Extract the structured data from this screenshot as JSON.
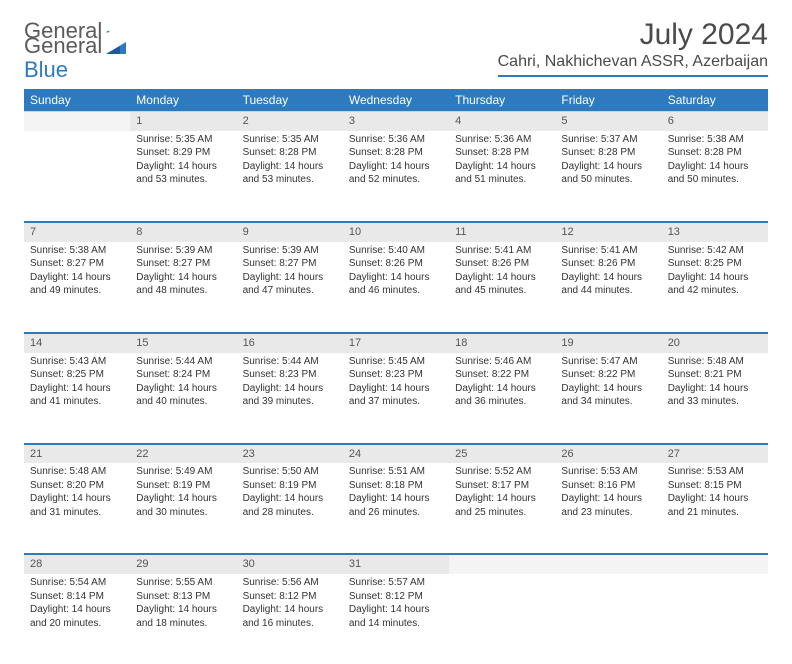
{
  "logo": {
    "general": "General",
    "blue": "Blue"
  },
  "header": {
    "month_title": "July 2024",
    "location": "Cahri, Nakhichevan ASSR, Azerbaijan"
  },
  "colors": {
    "primary": "#2e7abf",
    "header_bg": "#2e7abf",
    "daynum_bg": "#e9e9e9",
    "text": "#333333"
  },
  "weekdays": [
    "Sunday",
    "Monday",
    "Tuesday",
    "Wednesday",
    "Thursday",
    "Friday",
    "Saturday"
  ],
  "weeks": [
    [
      null,
      {
        "n": "1",
        "sr": "Sunrise: 5:35 AM",
        "ss": "Sunset: 8:29 PM",
        "dl": "Daylight: 14 hours and 53 minutes."
      },
      {
        "n": "2",
        "sr": "Sunrise: 5:35 AM",
        "ss": "Sunset: 8:28 PM",
        "dl": "Daylight: 14 hours and 53 minutes."
      },
      {
        "n": "3",
        "sr": "Sunrise: 5:36 AM",
        "ss": "Sunset: 8:28 PM",
        "dl": "Daylight: 14 hours and 52 minutes."
      },
      {
        "n": "4",
        "sr": "Sunrise: 5:36 AM",
        "ss": "Sunset: 8:28 PM",
        "dl": "Daylight: 14 hours and 51 minutes."
      },
      {
        "n": "5",
        "sr": "Sunrise: 5:37 AM",
        "ss": "Sunset: 8:28 PM",
        "dl": "Daylight: 14 hours and 50 minutes."
      },
      {
        "n": "6",
        "sr": "Sunrise: 5:38 AM",
        "ss": "Sunset: 8:28 PM",
        "dl": "Daylight: 14 hours and 50 minutes."
      }
    ],
    [
      {
        "n": "7",
        "sr": "Sunrise: 5:38 AM",
        "ss": "Sunset: 8:27 PM",
        "dl": "Daylight: 14 hours and 49 minutes."
      },
      {
        "n": "8",
        "sr": "Sunrise: 5:39 AM",
        "ss": "Sunset: 8:27 PM",
        "dl": "Daylight: 14 hours and 48 minutes."
      },
      {
        "n": "9",
        "sr": "Sunrise: 5:39 AM",
        "ss": "Sunset: 8:27 PM",
        "dl": "Daylight: 14 hours and 47 minutes."
      },
      {
        "n": "10",
        "sr": "Sunrise: 5:40 AM",
        "ss": "Sunset: 8:26 PM",
        "dl": "Daylight: 14 hours and 46 minutes."
      },
      {
        "n": "11",
        "sr": "Sunrise: 5:41 AM",
        "ss": "Sunset: 8:26 PM",
        "dl": "Daylight: 14 hours and 45 minutes."
      },
      {
        "n": "12",
        "sr": "Sunrise: 5:41 AM",
        "ss": "Sunset: 8:26 PM",
        "dl": "Daylight: 14 hours and 44 minutes."
      },
      {
        "n": "13",
        "sr": "Sunrise: 5:42 AM",
        "ss": "Sunset: 8:25 PM",
        "dl": "Daylight: 14 hours and 42 minutes."
      }
    ],
    [
      {
        "n": "14",
        "sr": "Sunrise: 5:43 AM",
        "ss": "Sunset: 8:25 PM",
        "dl": "Daylight: 14 hours and 41 minutes."
      },
      {
        "n": "15",
        "sr": "Sunrise: 5:44 AM",
        "ss": "Sunset: 8:24 PM",
        "dl": "Daylight: 14 hours and 40 minutes."
      },
      {
        "n": "16",
        "sr": "Sunrise: 5:44 AM",
        "ss": "Sunset: 8:23 PM",
        "dl": "Daylight: 14 hours and 39 minutes."
      },
      {
        "n": "17",
        "sr": "Sunrise: 5:45 AM",
        "ss": "Sunset: 8:23 PM",
        "dl": "Daylight: 14 hours and 37 minutes."
      },
      {
        "n": "18",
        "sr": "Sunrise: 5:46 AM",
        "ss": "Sunset: 8:22 PM",
        "dl": "Daylight: 14 hours and 36 minutes."
      },
      {
        "n": "19",
        "sr": "Sunrise: 5:47 AM",
        "ss": "Sunset: 8:22 PM",
        "dl": "Daylight: 14 hours and 34 minutes."
      },
      {
        "n": "20",
        "sr": "Sunrise: 5:48 AM",
        "ss": "Sunset: 8:21 PM",
        "dl": "Daylight: 14 hours and 33 minutes."
      }
    ],
    [
      {
        "n": "21",
        "sr": "Sunrise: 5:48 AM",
        "ss": "Sunset: 8:20 PM",
        "dl": "Daylight: 14 hours and 31 minutes."
      },
      {
        "n": "22",
        "sr": "Sunrise: 5:49 AM",
        "ss": "Sunset: 8:19 PM",
        "dl": "Daylight: 14 hours and 30 minutes."
      },
      {
        "n": "23",
        "sr": "Sunrise: 5:50 AM",
        "ss": "Sunset: 8:19 PM",
        "dl": "Daylight: 14 hours and 28 minutes."
      },
      {
        "n": "24",
        "sr": "Sunrise: 5:51 AM",
        "ss": "Sunset: 8:18 PM",
        "dl": "Daylight: 14 hours and 26 minutes."
      },
      {
        "n": "25",
        "sr": "Sunrise: 5:52 AM",
        "ss": "Sunset: 8:17 PM",
        "dl": "Daylight: 14 hours and 25 minutes."
      },
      {
        "n": "26",
        "sr": "Sunrise: 5:53 AM",
        "ss": "Sunset: 8:16 PM",
        "dl": "Daylight: 14 hours and 23 minutes."
      },
      {
        "n": "27",
        "sr": "Sunrise: 5:53 AM",
        "ss": "Sunset: 8:15 PM",
        "dl": "Daylight: 14 hours and 21 minutes."
      }
    ],
    [
      {
        "n": "28",
        "sr": "Sunrise: 5:54 AM",
        "ss": "Sunset: 8:14 PM",
        "dl": "Daylight: 14 hours and 20 minutes."
      },
      {
        "n": "29",
        "sr": "Sunrise: 5:55 AM",
        "ss": "Sunset: 8:13 PM",
        "dl": "Daylight: 14 hours and 18 minutes."
      },
      {
        "n": "30",
        "sr": "Sunrise: 5:56 AM",
        "ss": "Sunset: 8:12 PM",
        "dl": "Daylight: 14 hours and 16 minutes."
      },
      {
        "n": "31",
        "sr": "Sunrise: 5:57 AM",
        "ss": "Sunset: 8:12 PM",
        "dl": "Daylight: 14 hours and 14 minutes."
      },
      null,
      null,
      null
    ]
  ]
}
